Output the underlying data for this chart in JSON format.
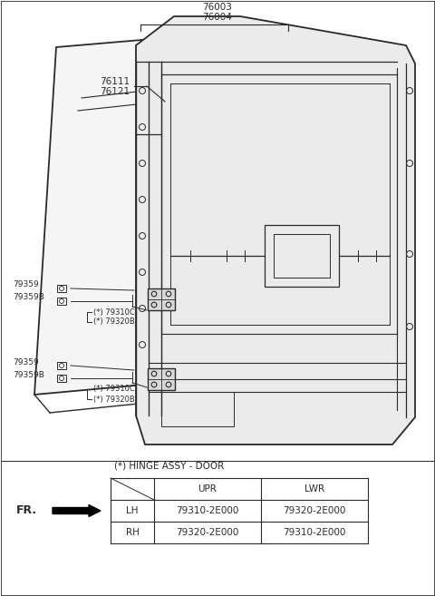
{
  "bg_color": "#ffffff",
  "line_color": "#2a2a2a",
  "text_color": "#2a2a2a",
  "fig_width": 4.8,
  "fig_height": 6.57,
  "dpi": 100,
  "table_title": "(*) HINGE ASSY - DOOR",
  "table_header_col2": "UPR",
  "table_header_col3": "LWR",
  "table_row1": [
    "LH",
    "79310-2E000",
    "79320-2E000"
  ],
  "table_row2": [
    "RH",
    "79320-2E000",
    "79310-2E000"
  ],
  "label_76003": "76003",
  "label_76004": "76004",
  "label_76111": "76111",
  "label_76121": "76121",
  "label_79359_1": "79359",
  "label_79359B_1": "79359B",
  "label_79310C_1": "(*) 79310C",
  "label_79320B_1": "(*) 79320B",
  "label_79359_2": "79359",
  "label_79359B_2": "79359B",
  "label_79310C_2": "(*) 79310C",
  "label_79320B_2": "(*) 79320B",
  "fr_label": "FR."
}
